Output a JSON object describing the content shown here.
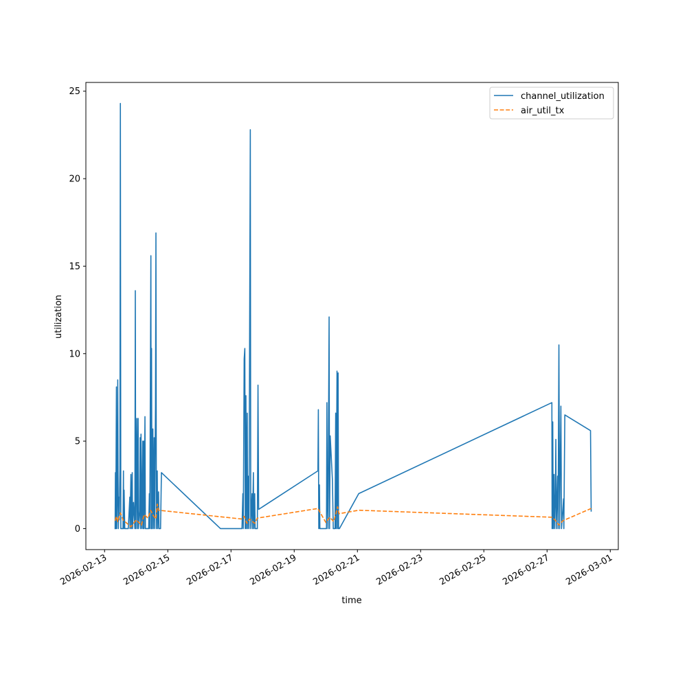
{
  "chart_data": {
    "type": "line",
    "title": "",
    "xlabel": "time",
    "ylabel": "utilization",
    "xlim": [
      "2026-02-12T09:48",
      "2026-03-01T06:06"
    ],
    "ylim": [
      -1.2,
      25.5
    ],
    "x_ticks": [
      "2026-02-13",
      "2026-02-15",
      "2026-02-17",
      "2026-02-19",
      "2026-02-21",
      "2026-02-23",
      "2026-02-25",
      "2026-02-27",
      "2026-03-01"
    ],
    "y_ticks": [
      0,
      5,
      10,
      15,
      20,
      25
    ],
    "grid": false,
    "legend_position": "top-right",
    "series": [
      {
        "name": "channel_utilization",
        "color": "#1f77b4",
        "style": "solid",
        "points": [
          [
            "2026-02-13T08:00",
            0.0
          ],
          [
            "2026-02-13T08:15",
            3.2
          ],
          [
            "2026-02-13T08:30",
            0.0
          ],
          [
            "2026-02-13T09:00",
            8.1
          ],
          [
            "2026-02-13T09:15",
            0.0
          ],
          [
            "2026-02-13T09:45",
            2.2
          ],
          [
            "2026-02-13T10:00",
            8.5
          ],
          [
            "2026-02-13T10:15",
            3.0
          ],
          [
            "2026-02-13T10:30",
            0.0
          ],
          [
            "2026-02-13T10:50",
            1.8
          ],
          [
            "2026-02-13T11:10",
            0.5
          ],
          [
            "2026-02-13T11:40",
            3.4
          ],
          [
            "2026-02-13T12:00",
            24.3
          ],
          [
            "2026-02-13T12:20",
            0.0
          ],
          [
            "2026-02-13T13:20",
            0.0
          ],
          [
            "2026-02-13T14:00",
            0.0
          ],
          [
            "2026-02-13T14:20",
            3.3
          ],
          [
            "2026-02-13T14:30",
            0.0
          ],
          [
            "2026-02-13T14:50",
            2.2
          ],
          [
            "2026-02-13T15:20",
            0.0
          ],
          [
            "2026-02-13T18:00",
            0.0
          ],
          [
            "2026-02-13T19:10",
            1.8
          ],
          [
            "2026-02-13T19:20",
            0.0
          ],
          [
            "2026-02-13T20:00",
            3.1
          ],
          [
            "2026-02-13T20:20",
            0.0
          ],
          [
            "2026-02-13T21:00",
            3.2
          ],
          [
            "2026-02-13T21:15",
            0.0
          ],
          [
            "2026-02-13T22:00",
            1.5
          ],
          [
            "2026-02-13T23:00",
            0.0
          ],
          [
            "2026-02-13T23:20",
            13.6
          ],
          [
            "2026-02-13T23:40",
            0.0
          ],
          [
            "2026-02-14T00:30",
            6.3
          ],
          [
            "2026-02-14T00:45",
            0.0
          ],
          [
            "2026-02-14T01:10",
            3.0
          ],
          [
            "2026-02-14T01:30",
            6.3
          ],
          [
            "2026-02-14T01:45",
            0.0
          ],
          [
            "2026-02-14T02:40",
            1.0
          ],
          [
            "2026-02-14T03:00",
            5.2
          ],
          [
            "2026-02-14T03:20",
            0.0
          ],
          [
            "2026-02-14T03:40",
            5.4
          ],
          [
            "2026-02-14T04:00",
            2.4
          ],
          [
            "2026-02-14T04:20",
            0.0
          ],
          [
            "2026-02-14T05:00",
            5.0
          ],
          [
            "2026-02-14T05:20",
            0.0
          ],
          [
            "2026-02-14T05:40",
            5.0
          ],
          [
            "2026-02-14T06:00",
            0.0
          ],
          [
            "2026-02-14T06:40",
            6.4
          ],
          [
            "2026-02-14T07:00",
            0.0
          ],
          [
            "2026-02-14T09:30",
            0.0
          ],
          [
            "2026-02-14T10:00",
            2.0
          ],
          [
            "2026-02-14T10:20",
            0.0
          ],
          [
            "2026-02-14T11:10",
            15.6
          ],
          [
            "2026-02-14T11:25",
            0.0
          ],
          [
            "2026-02-14T11:40",
            10.3
          ],
          [
            "2026-02-14T12:00",
            0.0
          ],
          [
            "2026-02-14T12:40",
            5.7
          ],
          [
            "2026-02-14T13:00",
            0.0
          ],
          [
            "2026-02-14T13:40",
            5.2
          ],
          [
            "2026-02-14T14:00",
            0.0
          ],
          [
            "2026-02-14T14:40",
            7.0
          ],
          [
            "2026-02-14T15:00",
            16.9
          ],
          [
            "2026-02-14T15:20",
            0.0
          ],
          [
            "2026-02-14T16:00",
            3.3
          ],
          [
            "2026-02-14T16:20",
            0.0
          ],
          [
            "2026-02-14T17:00",
            2.1
          ],
          [
            "2026-02-14T17:20",
            0.0
          ],
          [
            "2026-02-14T18:30",
            0.0
          ],
          [
            "2026-02-14T19:10",
            3.2
          ],
          [
            "2026-02-16T16:00",
            0.0
          ],
          [
            "2026-02-17T08:20",
            0.0
          ],
          [
            "2026-02-17T09:00",
            2.0
          ],
          [
            "2026-02-17T09:20",
            0.0
          ],
          [
            "2026-02-17T10:00",
            9.7
          ],
          [
            "2026-02-17T10:30",
            10.3
          ],
          [
            "2026-02-17T10:50",
            0.0
          ],
          [
            "2026-02-17T11:20",
            7.6
          ],
          [
            "2026-02-17T11:40",
            0.0
          ],
          [
            "2026-02-17T12:20",
            6.6
          ],
          [
            "2026-02-17T12:40",
            0.0
          ],
          [
            "2026-02-17T13:20",
            3.0
          ],
          [
            "2026-02-17T13:40",
            0.0
          ],
          [
            "2026-02-17T14:40",
            22.8
          ],
          [
            "2026-02-17T15:00",
            0.0
          ],
          [
            "2026-02-17T16:00",
            2.0
          ],
          [
            "2026-02-17T16:20",
            0.0
          ],
          [
            "2026-02-17T17:00",
            3.2
          ],
          [
            "2026-02-17T17:20",
            0.0
          ],
          [
            "2026-02-17T18:00",
            2.0
          ],
          [
            "2026-02-17T18:20",
            0.0
          ],
          [
            "2026-02-17T20:00",
            0.0
          ],
          [
            "2026-02-17T20:30",
            8.2
          ],
          [
            "2026-02-17T21:00",
            1.1
          ],
          [
            "2026-02-19T18:00",
            3.3
          ],
          [
            "2026-02-19T18:20",
            6.8
          ],
          [
            "2026-02-19T18:40",
            0.0
          ],
          [
            "2026-02-19T19:10",
            2.5
          ],
          [
            "2026-02-19T19:30",
            0.0
          ],
          [
            "2026-02-20T00:30",
            0.0
          ],
          [
            "2026-02-20T00:50",
            7.2
          ],
          [
            "2026-02-20T01:10",
            1.8
          ],
          [
            "2026-02-20T01:40",
            0.0
          ],
          [
            "2026-02-20T02:30",
            12.1
          ],
          [
            "2026-02-20T02:50",
            0.0
          ],
          [
            "2026-02-20T03:20",
            5.3
          ],
          [
            "2026-02-20T05:00",
            2.8
          ],
          [
            "2026-02-20T05:40",
            0.0
          ],
          [
            "2026-02-20T07:00",
            0.0
          ],
          [
            "2026-02-20T07:30",
            6.6
          ],
          [
            "2026-02-20T07:50",
            0.0
          ],
          [
            "2026-02-20T08:30",
            9.0
          ],
          [
            "2026-02-20T08:50",
            0.0
          ],
          [
            "2026-02-20T09:20",
            8.9
          ],
          [
            "2026-02-20T09:40",
            0.0
          ],
          [
            "2026-02-20T10:20",
            0.0
          ],
          [
            "2026-02-21T01:00",
            2.0
          ],
          [
            "2026-02-27T03:40",
            7.2
          ],
          [
            "2026-02-27T03:50",
            0.0
          ],
          [
            "2026-02-27T04:20",
            6.1
          ],
          [
            "2026-02-27T04:40",
            0.0
          ],
          [
            "2026-02-27T05:20",
            3.1
          ],
          [
            "2026-02-27T05:40",
            0.0
          ],
          [
            "2026-02-27T06:20",
            2.0
          ],
          [
            "2026-02-27T06:40",
            5.1
          ],
          [
            "2026-02-27T07:00",
            0.0
          ],
          [
            "2026-02-27T08:00",
            3.0
          ],
          [
            "2026-02-27T08:20",
            0.0
          ],
          [
            "2026-02-27T09:00",
            10.5
          ],
          [
            "2026-02-27T09:30",
            0.0
          ],
          [
            "2026-02-27T10:30",
            7.0
          ],
          [
            "2026-02-27T11:00",
            0.0
          ],
          [
            "2026-02-27T12:30",
            1.7
          ],
          [
            "2026-02-27T12:45",
            0.0
          ],
          [
            "2026-02-27T13:30",
            6.5
          ],
          [
            "2026-02-28T09:00",
            5.6
          ],
          [
            "2026-02-28T09:30",
            1.0
          ]
        ]
      },
      {
        "name": "air_util_tx",
        "color": "#ff7f0e",
        "style": "dashed",
        "points": [
          [
            "2026-02-13T08:00",
            0.45
          ],
          [
            "2026-02-13T09:00",
            0.7
          ],
          [
            "2026-02-13T10:00",
            0.4
          ],
          [
            "2026-02-13T12:00",
            0.9
          ],
          [
            "2026-02-13T14:00",
            0.5
          ],
          [
            "2026-02-13T20:00",
            0.1
          ],
          [
            "2026-02-14T00:00",
            0.5
          ],
          [
            "2026-02-14T04:00",
            0.2
          ],
          [
            "2026-02-14T06:00",
            0.8
          ],
          [
            "2026-02-14T09:00",
            0.6
          ],
          [
            "2026-02-14T11:00",
            1.05
          ],
          [
            "2026-02-14T13:00",
            0.75
          ],
          [
            "2026-02-14T15:00",
            0.55
          ],
          [
            "2026-02-14T16:00",
            1.4
          ],
          [
            "2026-02-14T17:00",
            1.05
          ],
          [
            "2026-02-17T08:00",
            0.55
          ],
          [
            "2026-02-17T10:00",
            0.7
          ],
          [
            "2026-02-17T12:00",
            0.3
          ],
          [
            "2026-02-17T14:00",
            0.55
          ],
          [
            "2026-02-17T18:00",
            0.3
          ],
          [
            "2026-02-17T20:00",
            0.6
          ],
          [
            "2026-02-19T18:00",
            1.15
          ],
          [
            "2026-02-20T00:00",
            0.35
          ],
          [
            "2026-02-20T03:00",
            0.65
          ],
          [
            "2026-02-20T06:00",
            0.4
          ],
          [
            "2026-02-20T09:00",
            1.25
          ],
          [
            "2026-02-20T10:00",
            0.85
          ],
          [
            "2026-02-21T01:00",
            1.05
          ],
          [
            "2026-02-27T03:30",
            0.65
          ],
          [
            "2026-02-27T06:00",
            0.5
          ],
          [
            "2026-02-27T09:00",
            0.2
          ],
          [
            "2026-02-27T12:00",
            0.45
          ],
          [
            "2026-02-28T09:30",
            1.15
          ]
        ]
      }
    ]
  }
}
